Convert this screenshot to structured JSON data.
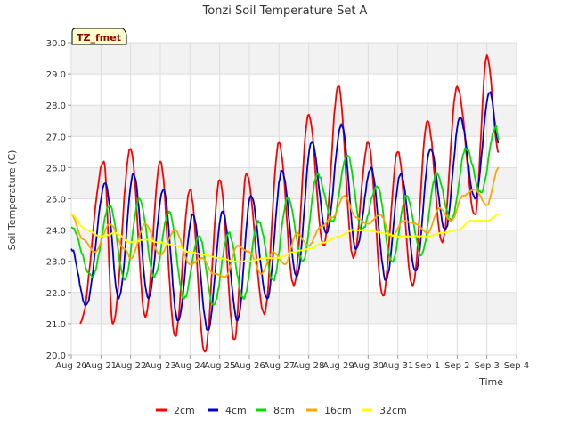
{
  "chart_data": {
    "type": "line",
    "title": "Tonzi Soil Temperature Set A",
    "xlabel": "Time",
    "ylabel": "Soil Temperature (C)",
    "badge": "TZ_fmet",
    "ylim": [
      20.0,
      30.0
    ],
    "y_ticks": [
      "20.0",
      "21.0",
      "22.0",
      "23.0",
      "24.0",
      "25.0",
      "26.0",
      "27.0",
      "28.0",
      "29.0",
      "30.0"
    ],
    "x_ticks": [
      "Aug 20",
      "Aug 21",
      "Aug 22",
      "Aug 23",
      "Aug 24",
      "Aug 25",
      "Aug 26",
      "Aug 27",
      "Aug 28",
      "Aug 29",
      "Aug 30",
      "Aug 31",
      "Sep 1",
      "Sep 2",
      "Sep 3",
      "Sep 4"
    ],
    "xlim_days": [
      0,
      15
    ],
    "grid": true,
    "legend_position": "bottom-center",
    "series": [
      {
        "name": "2cm",
        "color": "#ff0000",
        "min_peak": [
          [
            0.3,
            21.0,
            1.1,
            26.2
          ],
          [
            1.4,
            21.0,
            2.0,
            26.6
          ],
          [
            2.5,
            21.2,
            3.0,
            26.2
          ],
          [
            3.5,
            20.6,
            4.0,
            25.3
          ],
          [
            4.5,
            20.1,
            5.0,
            25.6
          ],
          [
            5.5,
            20.5,
            5.9,
            25.8
          ],
          [
            6.5,
            21.3,
            7.0,
            26.8
          ],
          [
            7.5,
            22.2,
            8.0,
            27.7
          ],
          [
            8.5,
            23.5,
            9.0,
            28.6
          ],
          [
            9.5,
            23.1,
            10.0,
            26.8
          ],
          [
            10.5,
            21.9,
            11.0,
            26.5
          ],
          [
            11.5,
            22.2,
            12.0,
            27.5
          ],
          [
            12.5,
            23.6,
            13.0,
            28.6
          ],
          [
            13.6,
            24.5,
            14.0,
            29.6
          ],
          [
            14.4,
            26.5,
            null,
            null
          ]
        ],
        "points": [
          [
            0.3,
            21.0
          ],
          [
            1.1,
            26.2
          ],
          [
            1.4,
            21.0
          ],
          [
            2.0,
            26.6
          ],
          [
            2.5,
            21.2
          ],
          [
            3.0,
            26.2
          ],
          [
            3.5,
            20.6
          ],
          [
            4.0,
            25.3
          ],
          [
            4.5,
            20.1
          ],
          [
            5.0,
            25.6
          ],
          [
            5.5,
            20.5
          ],
          [
            5.9,
            25.8
          ],
          [
            6.5,
            21.3
          ],
          [
            7.0,
            26.8
          ],
          [
            7.5,
            22.2
          ],
          [
            8.0,
            27.7
          ],
          [
            8.5,
            23.5
          ],
          [
            9.0,
            28.6
          ],
          [
            9.5,
            23.1
          ],
          [
            10.0,
            26.8
          ],
          [
            10.5,
            21.9
          ],
          [
            11.0,
            26.5
          ],
          [
            11.5,
            22.2
          ],
          [
            12.0,
            27.5
          ],
          [
            12.5,
            23.6
          ],
          [
            13.0,
            28.6
          ],
          [
            13.6,
            24.5
          ],
          [
            14.0,
            29.6
          ],
          [
            14.4,
            26.5
          ]
        ]
      },
      {
        "name": "4cm",
        "color": "#0000cc",
        "points": [
          [
            0.0,
            23.4
          ],
          [
            0.5,
            21.6
          ],
          [
            1.15,
            25.5
          ],
          [
            1.6,
            21.8
          ],
          [
            2.1,
            25.8
          ],
          [
            2.6,
            21.8
          ],
          [
            3.1,
            25.3
          ],
          [
            3.6,
            21.1
          ],
          [
            4.1,
            24.5
          ],
          [
            4.6,
            20.8
          ],
          [
            5.1,
            24.6
          ],
          [
            5.6,
            21.1
          ],
          [
            6.05,
            25.1
          ],
          [
            6.6,
            21.8
          ],
          [
            7.1,
            25.9
          ],
          [
            7.6,
            22.5
          ],
          [
            8.1,
            26.8
          ],
          [
            8.6,
            23.9
          ],
          [
            9.1,
            27.4
          ],
          [
            9.6,
            23.4
          ],
          [
            10.1,
            26.0
          ],
          [
            10.6,
            22.4
          ],
          [
            11.1,
            25.8
          ],
          [
            11.6,
            22.7
          ],
          [
            12.1,
            26.6
          ],
          [
            12.6,
            24.0
          ],
          [
            13.1,
            27.6
          ],
          [
            13.6,
            25.0
          ],
          [
            14.1,
            28.4
          ],
          [
            14.4,
            26.8
          ]
        ]
      },
      {
        "name": "8cm",
        "color": "#00dd00",
        "points": [
          [
            0.0,
            24.1
          ],
          [
            0.7,
            22.5
          ],
          [
            1.3,
            24.8
          ],
          [
            1.8,
            22.4
          ],
          [
            2.3,
            25.0
          ],
          [
            2.8,
            22.5
          ],
          [
            3.3,
            24.6
          ],
          [
            3.8,
            21.8
          ],
          [
            4.3,
            23.8
          ],
          [
            4.8,
            21.6
          ],
          [
            5.3,
            23.9
          ],
          [
            5.8,
            21.8
          ],
          [
            6.3,
            24.3
          ],
          [
            6.8,
            22.4
          ],
          [
            7.3,
            25.0
          ],
          [
            7.8,
            23.0
          ],
          [
            8.3,
            25.8
          ],
          [
            8.8,
            24.3
          ],
          [
            9.3,
            26.4
          ],
          [
            9.8,
            24.0
          ],
          [
            10.3,
            25.4
          ],
          [
            10.8,
            23.0
          ],
          [
            11.3,
            25.1
          ],
          [
            11.8,
            23.2
          ],
          [
            12.3,
            25.8
          ],
          [
            12.8,
            24.3
          ],
          [
            13.3,
            26.6
          ],
          [
            13.8,
            25.2
          ],
          [
            14.3,
            27.3
          ],
          [
            14.4,
            26.9
          ]
        ]
      },
      {
        "name": "16cm",
        "color": "#ffa500",
        "points": [
          [
            0.0,
            24.5
          ],
          [
            0.4,
            23.7
          ],
          [
            0.8,
            23.3
          ],
          [
            1.3,
            24.2
          ],
          [
            1.8,
            23.4
          ],
          [
            2.0,
            23.1
          ],
          [
            2.5,
            24.2
          ],
          [
            3.0,
            23.2
          ],
          [
            3.5,
            24.0
          ],
          [
            4.0,
            22.9
          ],
          [
            4.4,
            23.1
          ],
          [
            4.8,
            22.6
          ],
          [
            5.2,
            22.5
          ],
          [
            5.6,
            23.5
          ],
          [
            6.0,
            23.3
          ],
          [
            6.4,
            22.6
          ],
          [
            6.8,
            23.3
          ],
          [
            7.2,
            22.9
          ],
          [
            7.6,
            23.9
          ],
          [
            8.0,
            23.5
          ],
          [
            8.4,
            24.1
          ],
          [
            8.8,
            24.4
          ],
          [
            9.2,
            25.1
          ],
          [
            9.6,
            24.4
          ],
          [
            10.0,
            24.2
          ],
          [
            10.4,
            24.5
          ],
          [
            10.8,
            23.8
          ],
          [
            11.2,
            24.3
          ],
          [
            11.6,
            24.2
          ],
          [
            12.0,
            23.9
          ],
          [
            12.4,
            24.7
          ],
          [
            12.8,
            24.3
          ],
          [
            13.2,
            25.1
          ],
          [
            13.6,
            25.3
          ],
          [
            14.0,
            24.8
          ],
          [
            14.4,
            26.0
          ]
        ]
      },
      {
        "name": "32cm",
        "color": "#ffff00",
        "points": [
          [
            0.0,
            24.5
          ],
          [
            0.5,
            24.0
          ],
          [
            1.0,
            23.8
          ],
          [
            1.5,
            23.9
          ],
          [
            2.0,
            23.6
          ],
          [
            2.5,
            23.7
          ],
          [
            3.0,
            23.6
          ],
          [
            3.5,
            23.5
          ],
          [
            4.0,
            23.3
          ],
          [
            4.5,
            23.2
          ],
          [
            5.0,
            23.1
          ],
          [
            5.5,
            23.0
          ],
          [
            6.0,
            23.0
          ],
          [
            6.5,
            23.1
          ],
          [
            7.0,
            23.1
          ],
          [
            7.5,
            23.3
          ],
          [
            8.0,
            23.4
          ],
          [
            8.5,
            23.6
          ],
          [
            9.0,
            23.8
          ],
          [
            9.5,
            24.0
          ],
          [
            10.0,
            24.0
          ],
          [
            10.5,
            23.9
          ],
          [
            11.0,
            23.8
          ],
          [
            11.5,
            23.8
          ],
          [
            12.0,
            23.8
          ],
          [
            12.5,
            23.9
          ],
          [
            13.0,
            24.0
          ],
          [
            13.5,
            24.3
          ],
          [
            14.0,
            24.3
          ],
          [
            14.4,
            24.5
          ]
        ]
      }
    ]
  }
}
